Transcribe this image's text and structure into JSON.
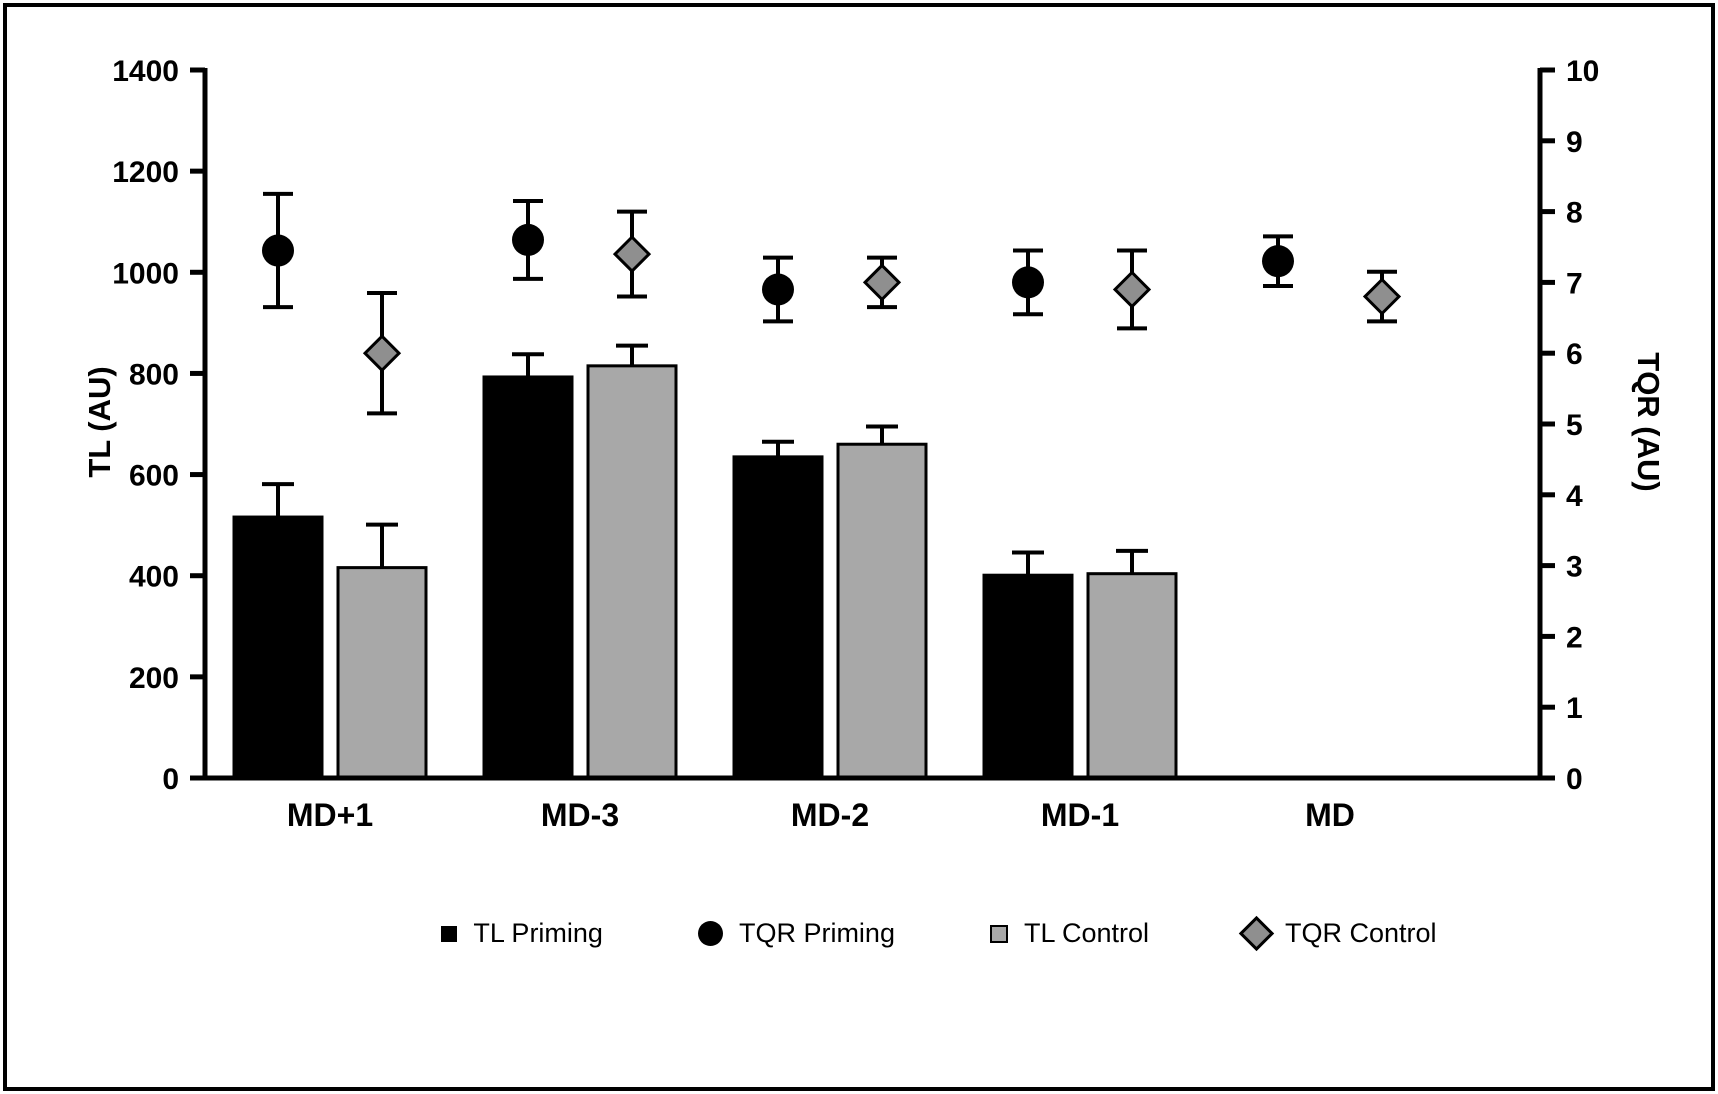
{
  "chart_data": {
    "type": "bar+scatter",
    "title": "",
    "categories": [
      "MD+1",
      "MD-3",
      "MD-2",
      "MD-1",
      "MD"
    ],
    "left_axis": {
      "label": "TL (AU)",
      "min": 0,
      "max": 1400,
      "step": 200
    },
    "right_axis": {
      "label": "TQR (AU)",
      "min": 0,
      "max": 10,
      "step": 1
    },
    "bar_series": [
      {
        "name": "TL Priming",
        "axis": "left",
        "color": "#000000",
        "values": [
          516,
          793,
          635,
          401,
          null
        ],
        "errors": [
          65,
          45,
          30,
          45,
          null
        ]
      },
      {
        "name": "TL Control",
        "axis": "left",
        "color": "#a8a8a8",
        "values": [
          416,
          815,
          660,
          404,
          null
        ],
        "errors": [
          85,
          40,
          35,
          45,
          null
        ]
      }
    ],
    "scatter_series": [
      {
        "name": "TQR Priming",
        "axis": "right",
        "marker": "circle",
        "color": "#000000",
        "values": [
          7.45,
          7.6,
          6.9,
          7.0,
          7.3
        ],
        "errors": [
          0.8,
          0.55,
          0.45,
          0.45,
          0.35
        ]
      },
      {
        "name": "TQR Control",
        "axis": "right",
        "marker": "diamond",
        "color": "#8f8f8f",
        "values": [
          6.0,
          7.4,
          7.0,
          6.9,
          6.8
        ],
        "errors": [
          0.85,
          0.6,
          0.35,
          0.55,
          0.35
        ]
      }
    ],
    "legend": [
      "TL Priming",
      "TQR Priming",
      "TL Control",
      "TQR Control"
    ],
    "grid": false,
    "legend_position": "bottom"
  }
}
